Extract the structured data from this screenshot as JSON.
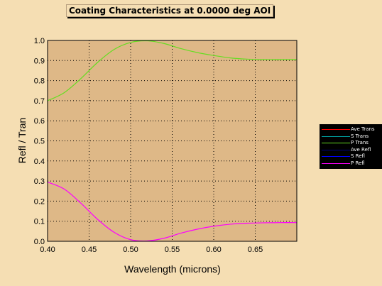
{
  "chart_data": {
    "type": "line",
    "title": "Coating Characteristics at 0.0000 deg AOI",
    "xlabel": "Wavelength (microns)",
    "ylabel": "Refl / Tran",
    "xlim": [
      0.4,
      0.7
    ],
    "ylim": [
      0.0,
      1.0
    ],
    "x_ticks": [
      "0.40",
      "0.45",
      "0.50",
      "0.55",
      "0.60",
      "0.65"
    ],
    "y_ticks": [
      "0.0",
      "0.1",
      "0.2",
      "0.3",
      "0.4",
      "0.5",
      "0.6",
      "0.7",
      "0.8",
      "0.9",
      "1.0"
    ],
    "grid": true,
    "legend_position": "right",
    "plot_background": "#deb887",
    "series": [
      {
        "name": "Ave Trans",
        "color": "#ff0000",
        "x": [],
        "y": []
      },
      {
        "name": "S Trans",
        "color": "#00aaaa",
        "x": [],
        "y": []
      },
      {
        "name": "P Trans",
        "color": "#66dd22",
        "x": [
          0.4,
          0.42,
          0.44,
          0.46,
          0.48,
          0.5,
          0.52,
          0.54,
          0.56,
          0.58,
          0.6,
          0.62,
          0.64,
          0.66,
          0.68,
          0.7
        ],
        "y": [
          0.7,
          0.74,
          0.81,
          0.89,
          0.955,
          0.99,
          0.998,
          0.985,
          0.96,
          0.94,
          0.925,
          0.913,
          0.907,
          0.905,
          0.905,
          0.905
        ]
      },
      {
        "name": "Ave Refl",
        "color": "#000080",
        "x": [],
        "y": []
      },
      {
        "name": "S Refl",
        "color": "#0000ff",
        "x": [],
        "y": []
      },
      {
        "name": "P Refl",
        "color": "#ff00ff",
        "x": [
          0.4,
          0.42,
          0.44,
          0.46,
          0.48,
          0.5,
          0.52,
          0.54,
          0.56,
          0.58,
          0.6,
          0.62,
          0.64,
          0.66,
          0.68,
          0.7
        ],
        "y": [
          0.295,
          0.26,
          0.19,
          0.11,
          0.045,
          0.008,
          0.002,
          0.015,
          0.04,
          0.06,
          0.075,
          0.085,
          0.09,
          0.092,
          0.093,
          0.093
        ]
      }
    ]
  }
}
